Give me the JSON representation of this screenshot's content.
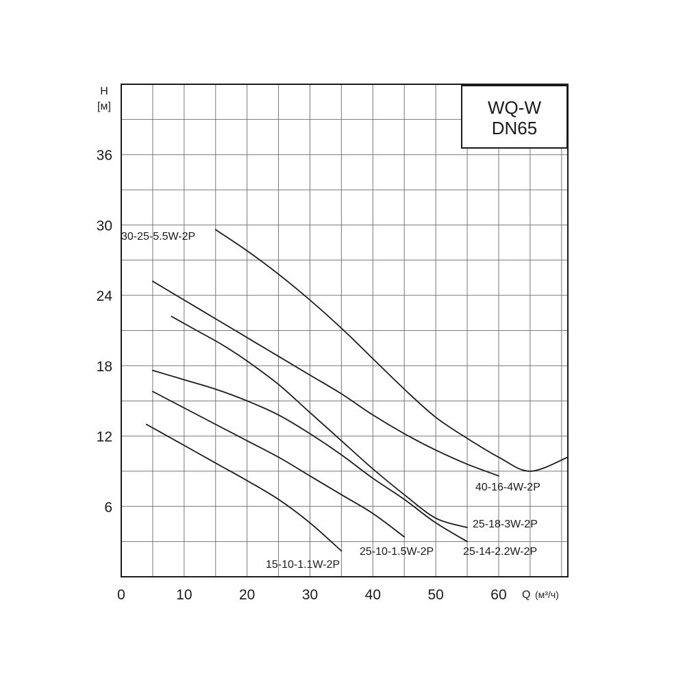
{
  "chart_data": {
    "type": "line",
    "title_lines": [
      "WQ-W",
      "DN65"
    ],
    "xlabel": "Q",
    "xunit": "(м³/ч)",
    "ylabel_lines": [
      "H",
      "[м]"
    ],
    "xlim": [
      0,
      71
    ],
    "ylim": [
      0,
      42
    ],
    "xticks": [
      0,
      10,
      20,
      30,
      40,
      50,
      60
    ],
    "yticks": [
      6,
      12,
      18,
      24,
      30,
      36
    ],
    "grid": true,
    "series": [
      {
        "name": "30-25-5.5W-2P",
        "points": [
          [
            15,
            29.6
          ],
          [
            20,
            27.8
          ],
          [
            25,
            25.8
          ],
          [
            30,
            23.6
          ],
          [
            35,
            21.2
          ],
          [
            40,
            18.6
          ],
          [
            45,
            16.0
          ],
          [
            50,
            13.6
          ],
          [
            55,
            11.8
          ],
          [
            60,
            10.2
          ],
          [
            65,
            9.0
          ],
          [
            71,
            10.2
          ]
        ]
      },
      {
        "name": "40-16-4W-2P",
        "points": [
          [
            5,
            25.2
          ],
          [
            10,
            23.6
          ],
          [
            15,
            22.0
          ],
          [
            20,
            20.4
          ],
          [
            25,
            18.8
          ],
          [
            30,
            17.2
          ],
          [
            35,
            15.6
          ],
          [
            40,
            13.8
          ],
          [
            45,
            12.2
          ],
          [
            50,
            10.8
          ],
          [
            55,
            9.6
          ],
          [
            60,
            8.6
          ]
        ]
      },
      {
        "name": "25-18-3W-2P",
        "points": [
          [
            8,
            22.2
          ],
          [
            12,
            21.0
          ],
          [
            16,
            19.8
          ],
          [
            20,
            18.4
          ],
          [
            25,
            16.4
          ],
          [
            30,
            14.0
          ],
          [
            35,
            11.6
          ],
          [
            40,
            9.2
          ],
          [
            45,
            7.0
          ],
          [
            50,
            5.0
          ],
          [
            55,
            4.2
          ]
        ]
      },
      {
        "name": "25-14-2.2W-2P",
        "points": [
          [
            5,
            17.6
          ],
          [
            10,
            16.8
          ],
          [
            15,
            16.0
          ],
          [
            20,
            15.0
          ],
          [
            25,
            13.8
          ],
          [
            30,
            12.2
          ],
          [
            35,
            10.4
          ],
          [
            40,
            8.4
          ],
          [
            45,
            6.6
          ],
          [
            50,
            4.6
          ],
          [
            55,
            3.0
          ]
        ]
      },
      {
        "name": "25-10-1.5W-2P",
        "points": [
          [
            5,
            15.8
          ],
          [
            10,
            14.4
          ],
          [
            15,
            13.0
          ],
          [
            20,
            11.6
          ],
          [
            25,
            10.2
          ],
          [
            30,
            8.6
          ],
          [
            35,
            7.0
          ],
          [
            40,
            5.4
          ],
          [
            45,
            3.4
          ]
        ]
      },
      {
        "name": "15-10-1.1W-2P",
        "points": [
          [
            4,
            13.0
          ],
          [
            8,
            11.8
          ],
          [
            12,
            10.6
          ],
          [
            16,
            9.4
          ],
          [
            20,
            8.2
          ],
          [
            25,
            6.6
          ],
          [
            30,
            4.6
          ],
          [
            35,
            2.2
          ]
        ]
      }
    ]
  }
}
